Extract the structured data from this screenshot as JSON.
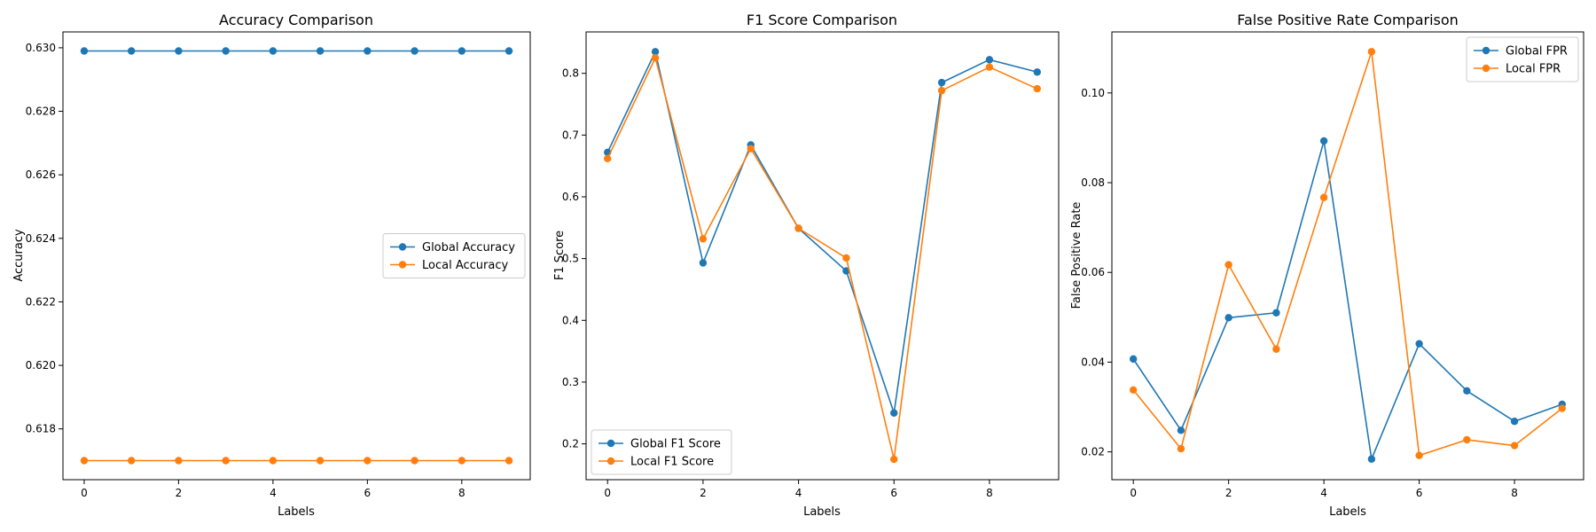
{
  "chart_data": [
    {
      "type": "line",
      "title": "Accuracy Comparison",
      "xlabel": "Labels",
      "ylabel": "Accuracy",
      "x": [
        0,
        1,
        2,
        3,
        4,
        5,
        6,
        7,
        8,
        9
      ],
      "xlim": [
        -0.45,
        9.45
      ],
      "ylim": [
        0.6164,
        0.6305
      ],
      "xticks": [
        0,
        2,
        4,
        6,
        8
      ],
      "yticks": [
        0.618,
        0.62,
        0.622,
        0.624,
        0.626,
        0.628,
        0.63
      ],
      "ytick_decimals": 3,
      "legend": "center-right",
      "grid": false,
      "series": [
        {
          "name": "Global Accuracy",
          "color": "#1f77b4",
          "values": [
            0.6299,
            0.6299,
            0.6299,
            0.6299,
            0.6299,
            0.6299,
            0.6299,
            0.6299,
            0.6299,
            0.6299
          ]
        },
        {
          "name": "Local Accuracy",
          "color": "#ff7f0e",
          "values": [
            0.617,
            0.617,
            0.617,
            0.617,
            0.617,
            0.617,
            0.617,
            0.617,
            0.617,
            0.617
          ]
        }
      ]
    },
    {
      "type": "line",
      "title": "F1 Score Comparison",
      "xlabel": "Labels",
      "ylabel": "F1 Score",
      "x": [
        0,
        1,
        2,
        3,
        4,
        5,
        6,
        7,
        8,
        9
      ],
      "xlim": [
        -0.45,
        9.45
      ],
      "ylim": [
        0.142,
        0.867
      ],
      "xticks": [
        0,
        2,
        4,
        6,
        8
      ],
      "yticks": [
        0.2,
        0.3,
        0.4,
        0.5,
        0.6,
        0.7,
        0.8
      ],
      "ytick_decimals": 1,
      "legend": "lower-left",
      "grid": false,
      "series": [
        {
          "name": "Global F1 Score",
          "color": "#1f77b4",
          "values": [
            0.672,
            0.835,
            0.493,
            0.684,
            0.549,
            0.48,
            0.25,
            0.785,
            0.822,
            0.802
          ]
        },
        {
          "name": "Local F1 Score",
          "color": "#ff7f0e",
          "values": [
            0.662,
            0.825,
            0.532,
            0.678,
            0.549,
            0.501,
            0.175,
            0.772,
            0.81,
            0.775
          ]
        }
      ]
    },
    {
      "type": "line",
      "title": "False Positive Rate Comparison",
      "xlabel": "Labels",
      "ylabel": "False Positive Rate",
      "x": [
        0,
        1,
        2,
        3,
        4,
        5,
        6,
        7,
        8,
        9
      ],
      "xlim": [
        -0.45,
        9.45
      ],
      "ylim": [
        0.0138,
        0.1136
      ],
      "xticks": [
        0,
        2,
        4,
        6,
        8
      ],
      "yticks": [
        0.02,
        0.04,
        0.06,
        0.08,
        0.1
      ],
      "ytick_decimals": 2,
      "legend": "top-right",
      "grid": false,
      "series": [
        {
          "name": "Global FPR",
          "color": "#1f77b4",
          "values": [
            0.0407,
            0.0248,
            0.0499,
            0.051,
            0.0893,
            0.0184,
            0.0441,
            0.0336,
            0.0268,
            0.0306
          ]
        },
        {
          "name": "Local FPR",
          "color": "#ff7f0e",
          "values": [
            0.0338,
            0.0207,
            0.0617,
            0.0429,
            0.0767,
            0.1092,
            0.0192,
            0.0227,
            0.0214,
            0.0297
          ]
        }
      ]
    }
  ]
}
